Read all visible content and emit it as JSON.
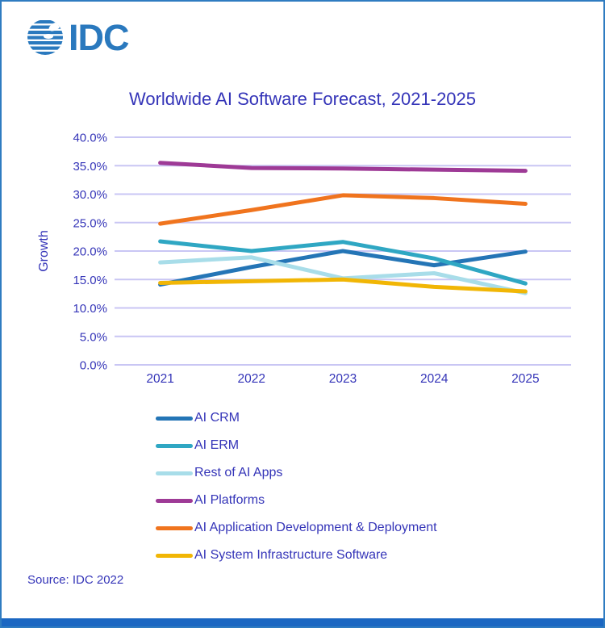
{
  "page": {
    "logo_text": "IDC",
    "source": "Source: IDC 2022"
  },
  "colors": {
    "brand_blue": "#2A79BE",
    "text_indigo": "#3434B8",
    "gridline": "#C9C6F4",
    "bottom_bar": "#1B67C2",
    "page_border": "#2F7CC1"
  },
  "chart_data": {
    "type": "line",
    "title": "Worldwide AI Software Forecast, 2021-2025",
    "xlabel": "",
    "ylabel": "Growth",
    "categories": [
      "2021",
      "2022",
      "2023",
      "2024",
      "2025"
    ],
    "series": [
      {
        "name": "AI CRM",
        "color": "#2475B6",
        "values": [
          14.1,
          17.2,
          20.0,
          17.5,
          19.9
        ]
      },
      {
        "name": "AI ERM",
        "color": "#2FA7C3",
        "values": [
          21.7,
          20.0,
          21.6,
          18.7,
          14.3
        ]
      },
      {
        "name": "Rest of AI Apps",
        "color": "#A8DDE9",
        "values": [
          18.0,
          18.9,
          15.2,
          16.1,
          12.6
        ]
      },
      {
        "name": "AI Platforms",
        "color": "#9E3A96",
        "values": [
          35.5,
          34.6,
          34.5,
          34.3,
          34.1
        ]
      },
      {
        "name": "AI Application Development & Deployment",
        "color": "#F0741E",
        "values": [
          24.8,
          27.2,
          29.8,
          29.3,
          28.3
        ]
      },
      {
        "name": "AI System Infrastructure Software",
        "color": "#F1B605",
        "values": [
          14.4,
          14.7,
          15.0,
          13.7,
          12.9
        ]
      }
    ],
    "ylim": [
      0,
      40
    ],
    "y_tick_values": [
      40,
      35,
      30,
      25,
      20,
      15,
      10,
      5,
      0
    ],
    "y_tick_labels": [
      "40.0%",
      "35.0%",
      "30.0%",
      "25.0%",
      "20.0%",
      "15.0%",
      "10.0%",
      "5.0%",
      "0.0%"
    ],
    "grid": true,
    "legend_position": "bottom-left"
  }
}
